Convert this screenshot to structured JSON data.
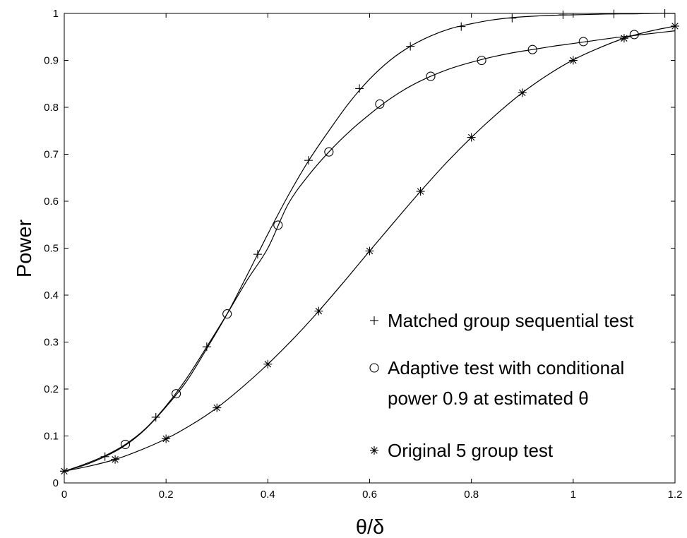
{
  "chart_data": {
    "type": "line",
    "title": "",
    "xlabel": "θ/δ",
    "ylabel": "Power",
    "xlim": [
      0,
      1.2
    ],
    "ylim": [
      0,
      1
    ],
    "grid": false,
    "legend_position": "bottom-right",
    "x_ticks": [
      "0",
      "0.2",
      "0.4",
      "0.6",
      "0.8",
      "1",
      "1.2"
    ],
    "y_ticks": [
      "0",
      "0.1",
      "0.2",
      "0.3",
      "0.4",
      "0.5",
      "0.6",
      "0.7",
      "0.8",
      "0.9",
      "1"
    ],
    "series": [
      {
        "name": "Matched group sequential test",
        "marker": "plus",
        "curve": [
          [
            0,
            0.025
          ],
          [
            0.04,
            0.038
          ],
          [
            0.08,
            0.056
          ],
          [
            0.12,
            0.08
          ],
          [
            0.16,
            0.115
          ],
          [
            0.2,
            0.162
          ],
          [
            0.24,
            0.216
          ],
          [
            0.28,
            0.286
          ],
          [
            0.32,
            0.36
          ],
          [
            0.36,
            0.444
          ],
          [
            0.4,
            0.53
          ],
          [
            0.44,
            0.612
          ],
          [
            0.48,
            0.686
          ],
          [
            0.52,
            0.75
          ],
          [
            0.56,
            0.81
          ],
          [
            0.6,
            0.86
          ],
          [
            0.64,
            0.9
          ],
          [
            0.68,
            0.93
          ],
          [
            0.72,
            0.952
          ],
          [
            0.76,
            0.968
          ],
          [
            0.8,
            0.978
          ],
          [
            0.84,
            0.986
          ],
          [
            0.88,
            0.991
          ],
          [
            0.92,
            0.994
          ],
          [
            0.96,
            0.996
          ],
          [
            1.0,
            0.997
          ],
          [
            1.04,
            0.998
          ],
          [
            1.08,
            0.999
          ],
          [
            1.12,
            0.999
          ],
          [
            1.16,
            1.0
          ],
          [
            1.2,
            1.0
          ]
        ],
        "points": [
          [
            0,
            0.025
          ],
          [
            0.08,
            0.056
          ],
          [
            0.18,
            0.14
          ],
          [
            0.28,
            0.29
          ],
          [
            0.38,
            0.487
          ],
          [
            0.48,
            0.687
          ],
          [
            0.58,
            0.84
          ],
          [
            0.68,
            0.93
          ],
          [
            0.78,
            0.972
          ],
          [
            0.88,
            0.99
          ],
          [
            0.98,
            0.997
          ],
          [
            1.08,
            0.999
          ],
          [
            1.18,
            1.0
          ]
        ]
      },
      {
        "name": "Adaptive test with conditional power 0.9 at estimated θ",
        "marker": "circle",
        "curve": [
          [
            0,
            0.025
          ],
          [
            0.04,
            0.04
          ],
          [
            0.08,
            0.058
          ],
          [
            0.12,
            0.082
          ],
          [
            0.16,
            0.116
          ],
          [
            0.2,
            0.164
          ],
          [
            0.24,
            0.222
          ],
          [
            0.28,
            0.29
          ],
          [
            0.32,
            0.36
          ],
          [
            0.36,
            0.433
          ],
          [
            0.4,
            0.5
          ],
          [
            0.44,
            0.594
          ],
          [
            0.48,
            0.655
          ],
          [
            0.52,
            0.705
          ],
          [
            0.56,
            0.748
          ],
          [
            0.6,
            0.785
          ],
          [
            0.64,
            0.818
          ],
          [
            0.68,
            0.845
          ],
          [
            0.72,
            0.866
          ],
          [
            0.76,
            0.883
          ],
          [
            0.8,
            0.896
          ],
          [
            0.84,
            0.907
          ],
          [
            0.88,
            0.916
          ],
          [
            0.92,
            0.923
          ],
          [
            0.96,
            0.93
          ],
          [
            1.0,
            0.936
          ],
          [
            1.04,
            0.942
          ],
          [
            1.08,
            0.948
          ],
          [
            1.12,
            0.953
          ],
          [
            1.16,
            0.958
          ],
          [
            1.2,
            0.963
          ]
        ],
        "points": [
          [
            0.12,
            0.082
          ],
          [
            0.22,
            0.19
          ],
          [
            0.32,
            0.36
          ],
          [
            0.42,
            0.549
          ],
          [
            0.52,
            0.705
          ],
          [
            0.62,
            0.807
          ],
          [
            0.72,
            0.866
          ],
          [
            0.82,
            0.9
          ],
          [
            0.92,
            0.923
          ],
          [
            1.02,
            0.94
          ],
          [
            1.12,
            0.955
          ]
        ]
      },
      {
        "name": "Original 5 group test",
        "marker": "asterisk",
        "curve": [
          [
            0,
            0.025
          ],
          [
            0.05,
            0.036
          ],
          [
            0.1,
            0.05
          ],
          [
            0.15,
            0.07
          ],
          [
            0.2,
            0.094
          ],
          [
            0.25,
            0.124
          ],
          [
            0.3,
            0.16
          ],
          [
            0.35,
            0.204
          ],
          [
            0.4,
            0.253
          ],
          [
            0.45,
            0.307
          ],
          [
            0.5,
            0.366
          ],
          [
            0.55,
            0.429
          ],
          [
            0.6,
            0.494
          ],
          [
            0.65,
            0.558
          ],
          [
            0.7,
            0.621
          ],
          [
            0.75,
            0.681
          ],
          [
            0.8,
            0.736
          ],
          [
            0.85,
            0.786
          ],
          [
            0.9,
            0.831
          ],
          [
            0.95,
            0.869
          ],
          [
            1.0,
            0.901
          ],
          [
            1.05,
            0.926
          ],
          [
            1.1,
            0.947
          ],
          [
            1.15,
            0.962
          ],
          [
            1.2,
            0.973
          ]
        ],
        "points": [
          [
            0,
            0.025
          ],
          [
            0.1,
            0.05
          ],
          [
            0.2,
            0.094
          ],
          [
            0.3,
            0.16
          ],
          [
            0.4,
            0.253
          ],
          [
            0.5,
            0.366
          ],
          [
            0.6,
            0.494
          ],
          [
            0.7,
            0.621
          ],
          [
            0.8,
            0.736
          ],
          [
            0.9,
            0.831
          ],
          [
            1.0,
            0.9
          ],
          [
            1.1,
            0.947
          ],
          [
            1.2,
            0.973
          ]
        ]
      }
    ],
    "legend": {
      "items": [
        {
          "marker": "plus",
          "lines": [
            "Matched group sequential test"
          ]
        },
        {
          "marker": "circle",
          "lines": [
            "Adaptive test with conditional",
            "power 0.9 at estimated θ"
          ]
        },
        {
          "marker": "asterisk",
          "lines": [
            "Original 5 group test"
          ]
        }
      ]
    }
  }
}
